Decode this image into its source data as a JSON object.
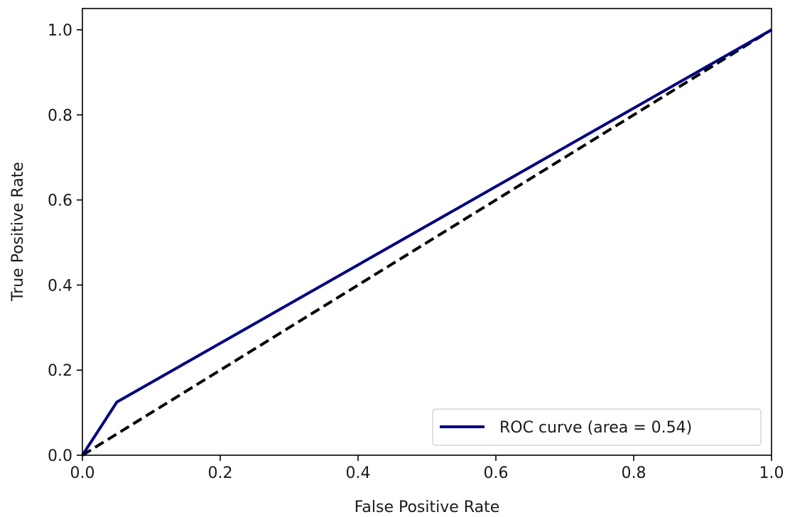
{
  "chart_data": {
    "type": "line",
    "title": "",
    "xlabel": "False Positive Rate",
    "ylabel": "True Positive Rate",
    "xlim": [
      0.0,
      1.0
    ],
    "ylim": [
      0.0,
      1.05
    ],
    "xticks": [
      0.0,
      0.2,
      0.4,
      0.6,
      0.8,
      1.0
    ],
    "yticks": [
      0.0,
      0.2,
      0.4,
      0.6,
      0.8,
      1.0
    ],
    "xtick_labels": [
      "0.0",
      "0.2",
      "0.4",
      "0.6",
      "0.8",
      "1.0"
    ],
    "ytick_labels": [
      "0.0",
      "0.2",
      "0.4",
      "0.6",
      "0.8",
      "1.0"
    ],
    "grid": false,
    "legend_position": "lower-right",
    "series": [
      {
        "name": "ROC curve (area = 0.54)",
        "color": "#000080",
        "style": "solid",
        "x": [
          0.0,
          0.05,
          1.0
        ],
        "y": [
          0.0,
          0.125,
          1.0
        ]
      },
      {
        "color": "#000000",
        "style": "dashed",
        "x": [
          0.0,
          1.0
        ],
        "y": [
          0.0,
          1.0
        ]
      }
    ]
  }
}
